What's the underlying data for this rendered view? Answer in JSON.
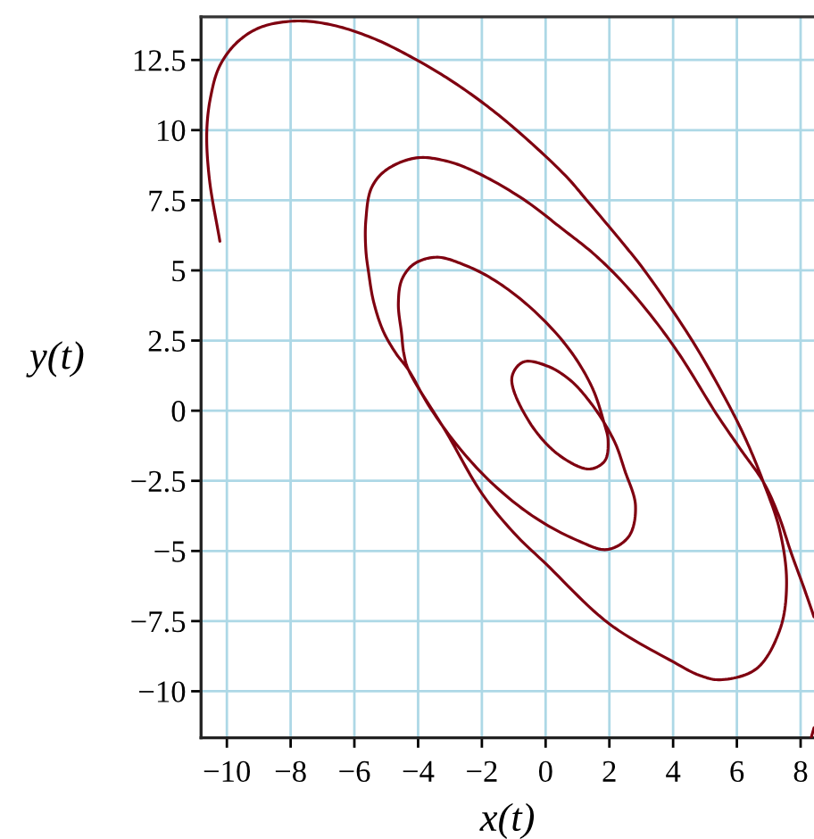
{
  "chart_data": {
    "type": "line",
    "xlabel": "x(t)",
    "ylabel": "y(t)",
    "xlim": [
      -10.81,
      8.42
    ],
    "ylim": [
      -11.66,
      14.04
    ],
    "xticks": [
      -10,
      -8,
      -6,
      -4,
      -2,
      0,
      2,
      4,
      6,
      8
    ],
    "yticks": [
      -10,
      -7.5,
      -5,
      -2.5,
      0,
      2.5,
      5,
      7.5,
      10,
      12.5
    ],
    "grid": true,
    "series": [
      {
        "color": "#7f0010",
        "x": [
          -10.22,
          -10.55,
          -10.63,
          -10.5,
          -10.22,
          -9.66,
          -8.91,
          -7.79,
          -6.67,
          -5.36,
          -4.06,
          -3.12,
          -2.0,
          -0.88,
          0.62,
          1.27,
          2.4,
          3.1,
          4.63,
          5.84,
          6.35,
          6.83,
          7.34,
          7.56,
          7.34,
          6.59,
          5.47,
          4.8,
          4.0,
          2.0,
          0.0,
          -1.0,
          -2.0,
          -3.1,
          -4.3,
          -4.45,
          -4.52,
          -4.62,
          -4.5,
          -4.1,
          -3.4,
          -2.56,
          -1.62,
          -0.45,
          0.7,
          1.45,
          1.83,
          1.96,
          1.85,
          1.36,
          0.43,
          -0.5,
          -1.06,
          -0.69,
          0.06,
          0.8,
          1.4,
          1.83,
          2.2,
          2.48,
          2.82,
          2.6,
          1.92,
          0.99,
          -0.32,
          -1.62,
          -2.75,
          -3.68,
          -4.3,
          -4.7,
          -5.1,
          -5.4,
          -5.55,
          -5.64,
          -5.64,
          -5.46,
          -4.99,
          -4.06,
          -3.12,
          -2.18,
          -0.69,
          0.5,
          1.5,
          2.4,
          3.3,
          4.2,
          5.35,
          6.1,
          6.83,
          7.3,
          7.71,
          8.1,
          8.42,
          null,
          8.42,
          8.33
        ],
        "values": [
          6.04,
          8.27,
          9.97,
          11.24,
          12.3,
          13.15,
          13.68,
          13.89,
          13.74,
          13.25,
          12.51,
          11.88,
          11.0,
          9.97,
          8.38,
          7.53,
          6.0,
          5.0,
          2.44,
          0.0,
          -1.2,
          -2.54,
          -4.24,
          -6.15,
          -7.84,
          -9.22,
          -9.59,
          -9.42,
          -8.95,
          -7.6,
          -5.45,
          -4.35,
          -2.95,
          -0.8,
          1.45,
          2.05,
          2.76,
          3.82,
          4.7,
          5.25,
          5.47,
          5.2,
          4.66,
          3.65,
          2.25,
          0.85,
          -0.42,
          -1.06,
          -1.8,
          -2.08,
          -1.59,
          -0.42,
          1.17,
          1.74,
          1.59,
          1.06,
          0.3,
          -0.42,
          -1.2,
          -2.12,
          -3.39,
          -4.5,
          -4.95,
          -4.62,
          -3.82,
          -2.65,
          -1.27,
          0.21,
          1.45,
          2.05,
          2.85,
          3.9,
          4.9,
          5.73,
          6.79,
          7.95,
          8.59,
          9.01,
          8.9,
          8.5,
          7.53,
          6.5,
          5.6,
          4.6,
          3.4,
          2.0,
          -0.1,
          -1.35,
          -2.54,
          -3.7,
          -5.09,
          -6.3,
          -7.35,
          null,
          -11.3,
          -11.66
        ]
      }
    ]
  }
}
